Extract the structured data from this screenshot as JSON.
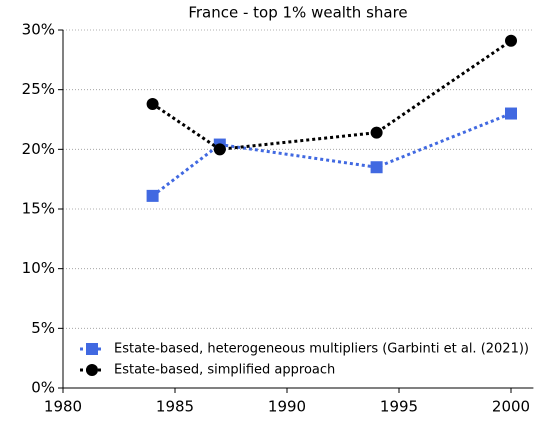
{
  "chart_data": {
    "type": "line",
    "title": "France - top 1% wealth share",
    "x": [
      1984,
      1987,
      1994,
      2000
    ],
    "series": [
      {
        "name": "Estate-based, heterogeneous multipliers (Garbinti et al. (2021))",
        "color": "#4169e1",
        "marker": "square",
        "values": [
          16.1,
          20.4,
          18.5,
          23.0
        ]
      },
      {
        "name": "Estate-based, simplified approach",
        "color": "#000000",
        "marker": "circle",
        "values": [
          23.8,
          20.0,
          21.4,
          29.1
        ]
      }
    ],
    "xlim": [
      1980,
      2001
    ],
    "xticks": [
      1980,
      1985,
      1990,
      1995,
      2000
    ],
    "ylim": [
      0,
      30
    ],
    "yticks": [
      {
        "value": 0,
        "label": "0%"
      },
      {
        "value": 5,
        "label": "5%"
      },
      {
        "value": 10,
        "label": "10%"
      },
      {
        "value": 15,
        "label": "15%"
      },
      {
        "value": 20,
        "label": "20%"
      },
      {
        "value": 25,
        "label": "25%"
      },
      {
        "value": 30,
        "label": "30%"
      }
    ],
    "grid": true,
    "legend": "lower left"
  }
}
